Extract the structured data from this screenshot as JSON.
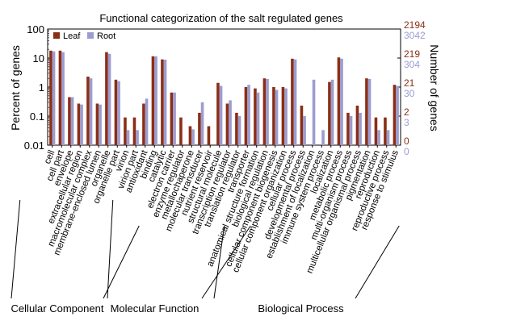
{
  "chart_data": {
    "type": "bar",
    "title": "Functional categorization of the salt regulated genes",
    "ylabel": "Percent of genes",
    "y2label": "Number of genes",
    "yscale": "log",
    "ylim": [
      0.01,
      100
    ],
    "yticks": [
      "100",
      "10",
      "1",
      "0.1",
      "0.01"
    ],
    "grid": false,
    "legend_position": "top-left",
    "colors": {
      "leaf": "#8B2E16",
      "root": "#9C9CD0"
    },
    "categories": [
      "cell",
      "cell part",
      "envelope",
      "extracellular region",
      "macromolecular complex",
      "membrane-enclosed lumen",
      "organelle",
      "organelle part",
      "virion",
      "virion part",
      "antioxidant",
      "binding",
      "catalytic",
      "electron carrier",
      "enzyme regulator",
      "metallochaperone",
      "molecular transducer",
      "nutrient reservoir",
      "structural molecule",
      "transcription regulator",
      "translation regulator",
      "transporter",
      "anatomical structure formation",
      "biological regulation",
      "cellular component biogenesis",
      "cellular component organization",
      "cellular process",
      "developmental process",
      "establishment of localization",
      "immune system process",
      "localization",
      "metabolic process",
      "multi-organism process",
      "multicellular organismal process",
      "pigmentation",
      "reproduction",
      "reproductive process",
      "response to stimulus"
    ],
    "series": [
      {
        "name": "Leaf",
        "values": [
          18,
          18,
          0.45,
          0.27,
          2.3,
          0.27,
          16,
          1.8,
          0.09,
          0.09,
          0.27,
          11.5,
          9,
          0.65,
          0.09,
          0.045,
          0.13,
          0.045,
          1.4,
          0.27,
          0.13,
          1.0,
          0.9,
          2.0,
          1.0,
          1.0,
          9.5,
          0.23,
          0.009,
          0.009,
          1.5,
          10.5,
          0.13,
          0.23,
          2.0,
          0.09,
          0.09,
          1.2
        ]
      },
      {
        "name": "Root",
        "values": [
          17,
          16,
          0.45,
          0.25,
          2.0,
          0.25,
          14,
          1.6,
          0.033,
          0.033,
          0.4,
          11.5,
          8.8,
          0.65,
          0.009,
          0.035,
          0.3,
          0.009,
          1.1,
          0.35,
          0.1,
          1.2,
          0.65,
          1.9,
          0.8,
          0.9,
          9.0,
          0.1,
          1.8,
          0.033,
          1.8,
          9.5,
          0.1,
          0.13,
          1.9,
          0.033,
          0.033,
          1.1
        ]
      }
    ],
    "right_axis_ticks": [
      {
        "leaf": "2194",
        "root": "3042"
      },
      {
        "leaf": "219",
        "root": "304"
      },
      {
        "leaf": "21",
        "root": "30"
      },
      {
        "leaf": "2",
        "root": "3"
      },
      {
        "leaf": "0",
        "root": "0"
      }
    ],
    "groups": [
      {
        "label": "Cellular Component",
        "from": 0,
        "to": 9
      },
      {
        "label": "Molecular Function",
        "from": 10,
        "to": 21
      },
      {
        "label": "Biological Process",
        "from": 22,
        "to": 37
      }
    ]
  }
}
